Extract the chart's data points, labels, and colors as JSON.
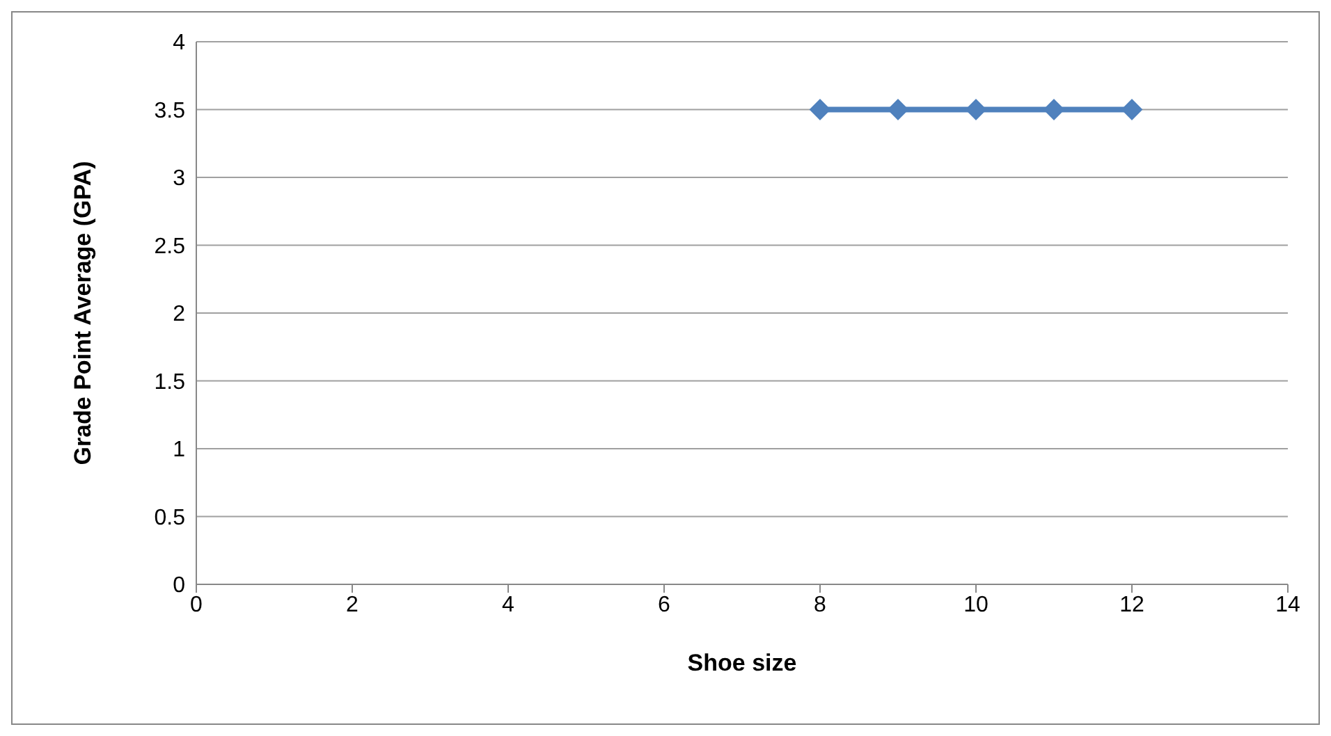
{
  "chart_data": {
    "type": "line",
    "xlabel": "Shoe size",
    "ylabel": "Grade Point Average (GPA)",
    "x": [
      8,
      9,
      10,
      11,
      12
    ],
    "series": [
      {
        "color": "#4f81bd",
        "values": [
          3.5,
          3.5,
          3.5,
          3.5,
          3.5
        ]
      }
    ],
    "xlim": [
      0,
      14
    ],
    "xticks": [
      0,
      2,
      4,
      6,
      8,
      10,
      12,
      14
    ],
    "ylim": [
      0,
      4
    ],
    "yticks": [
      0,
      0.5,
      1,
      1.5,
      2,
      2.5,
      3,
      3.5,
      4
    ],
    "grid": "y",
    "marker": "diamond",
    "legend": false
  }
}
